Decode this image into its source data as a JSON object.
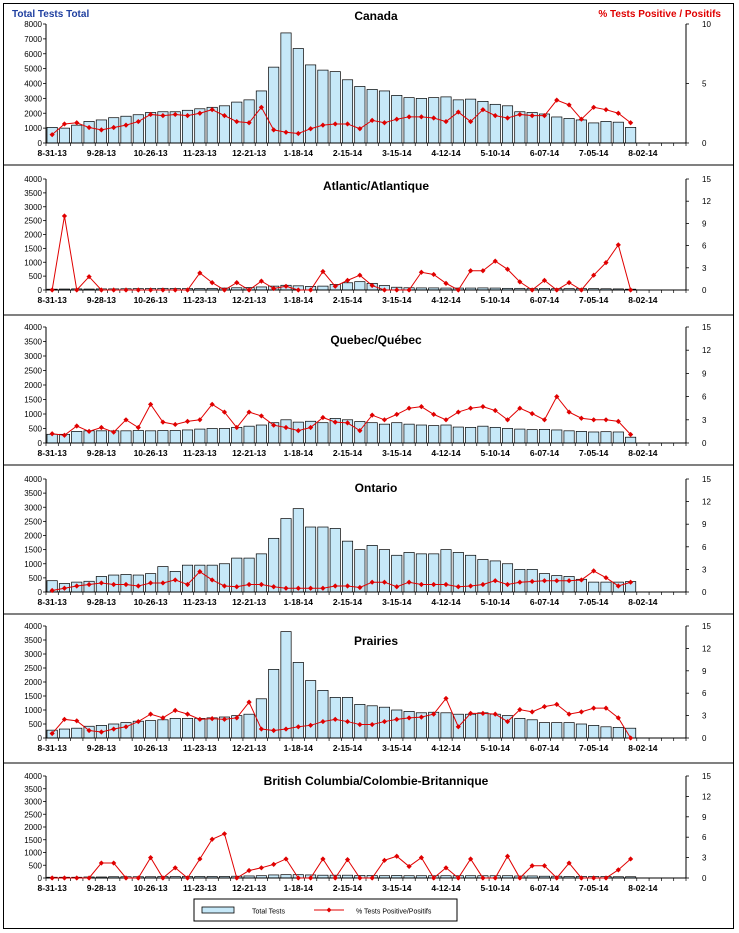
{
  "legend": {
    "bars_label": "Total Tests",
    "line_label": "% Tests Positive/Positifs"
  },
  "corner_labels": {
    "left": "Total Tests Total",
    "right": "% Tests Positive / Positifs"
  },
  "colors": {
    "bar_fill": "#c6e8f8",
    "bar_stroke": "#000000",
    "line": "#e00000",
    "left_label": "#1f3fa0",
    "right_label": "#e00000"
  },
  "x_tick_labels": [
    "8-31-13",
    "9-28-13",
    "10-26-13",
    "11-23-13",
    "12-21-13",
    "1-18-14",
    "2-15-14",
    "3-15-14",
    "4-12-14",
    "5-10-14",
    "6-07-14",
    "7-05-14",
    "8-02-14"
  ],
  "chart_data": [
    {
      "type": "bar",
      "title": "Canada",
      "ylim": [
        0,
        8000
      ],
      "yticks": [
        0,
        1000,
        2000,
        3000,
        4000,
        5000,
        6000,
        7000,
        8000
      ],
      "y2lim": [
        0,
        10
      ],
      "y2ticks": [
        0,
        5,
        10
      ],
      "series": [
        {
          "name": "Total Tests",
          "type": "bar",
          "values": [
            1050,
            1000,
            1200,
            1450,
            1550,
            1700,
            1800,
            1900,
            2050,
            2100,
            2100,
            2200,
            2300,
            2400,
            2500,
            2750,
            2900,
            3500,
            5100,
            7400,
            6350,
            5250,
            4900,
            4800,
            4250,
            3800,
            3600,
            3500,
            3200,
            3050,
            3000,
            3050,
            3100,
            2900,
            2950,
            2800,
            2600,
            2500,
            2100,
            2050,
            1950,
            1750,
            1650,
            1550,
            1350,
            1450,
            1400,
            1050,
            0,
            0,
            0,
            0
          ]
        },
        {
          "name": "% Tests Positive/Positifs",
          "type": "line",
          "values": [
            0.7,
            1.6,
            1.7,
            1.3,
            1.1,
            1.3,
            1.5,
            1.8,
            2.4,
            2.3,
            2.4,
            2.3,
            2.5,
            2.8,
            2.3,
            1.8,
            1.7,
            3.0,
            1.1,
            0.9,
            0.8,
            1.2,
            1.5,
            1.6,
            1.6,
            1.2,
            1.9,
            1.7,
            2.0,
            2.2,
            2.2,
            2.1,
            1.8,
            2.6,
            1.8,
            2.8,
            2.3,
            2.1,
            2.4,
            2.3,
            2.3,
            3.6,
            3.2,
            2.0,
            3.0,
            2.8,
            2.5,
            1.7
          ]
        }
      ]
    },
    {
      "type": "bar",
      "title": "Atlantic/Atlantique",
      "ylim": [
        0,
        4000
      ],
      "yticks": [
        0,
        500,
        1000,
        1500,
        2000,
        2500,
        3000,
        3500,
        4000
      ],
      "y2lim": [
        0,
        15
      ],
      "y2ticks": [
        0,
        3,
        6,
        9,
        12,
        15
      ],
      "series": [
        {
          "name": "Total Tests",
          "type": "bar",
          "values": [
            30,
            35,
            40,
            35,
            40,
            40,
            45,
            50,
            55,
            60,
            55,
            50,
            55,
            60,
            70,
            80,
            90,
            110,
            140,
            170,
            150,
            130,
            140,
            200,
            260,
            300,
            240,
            160,
            100,
            80,
            75,
            75,
            70,
            70,
            70,
            75,
            70,
            60,
            60,
            55,
            55,
            50,
            50,
            50,
            50,
            45,
            40,
            30,
            0,
            0,
            0,
            0
          ]
        },
        {
          "name": "% Tests Positive/Positifs",
          "type": "line",
          "values": [
            0,
            10,
            0,
            1.8,
            0,
            0,
            0,
            0,
            0,
            0,
            0,
            0,
            2.3,
            1,
            0,
            1,
            0,
            1.2,
            0.2,
            0.5,
            0,
            0,
            2.5,
            0.5,
            1.3,
            2,
            0.6,
            0,
            0,
            0,
            2.4,
            2.1,
            0.9,
            0,
            2.6,
            2.6,
            3.9,
            2.8,
            1.1,
            0,
            1.3,
            0,
            1,
            0,
            2,
            3.7,
            6.1,
            0
          ]
        }
      ]
    },
    {
      "type": "bar",
      "title": "Quebec/Québec",
      "ylim": [
        0,
        4000
      ],
      "yticks": [
        0,
        500,
        1000,
        1500,
        2000,
        2500,
        3000,
        3500,
        4000
      ],
      "y2lim": [
        0,
        15
      ],
      "y2ticks": [
        0,
        3,
        6,
        9,
        12,
        15
      ],
      "series": [
        {
          "name": "Total Tests",
          "type": "bar",
          "values": [
            300,
            300,
            400,
            420,
            420,
            420,
            420,
            430,
            420,
            430,
            430,
            450,
            480,
            500,
            500,
            540,
            580,
            620,
            700,
            800,
            720,
            750,
            700,
            850,
            800,
            740,
            700,
            650,
            700,
            650,
            620,
            600,
            620,
            550,
            540,
            580,
            540,
            500,
            480,
            460,
            470,
            450,
            420,
            400,
            380,
            390,
            380,
            200,
            0,
            0,
            0,
            0
          ]
        },
        {
          "name": "% Tests Positive/Positifs",
          "type": "line",
          "values": [
            1.2,
            1.0,
            2.2,
            1.5,
            2.0,
            1.4,
            3.0,
            2.0,
            5.0,
            2.7,
            2.4,
            2.8,
            3.0,
            5.0,
            4.0,
            2.0,
            4.0,
            3.5,
            2.3,
            2.0,
            1.6,
            2.0,
            3.3,
            2.7,
            2.6,
            1.6,
            3.6,
            3.0,
            3.7,
            4.5,
            4.7,
            3.7,
            3.0,
            4.0,
            4.5,
            4.7,
            4.2,
            3.0,
            4.5,
            3.8,
            3.0,
            6.0,
            4.0,
            3.2,
            3.0,
            3.0,
            2.8,
            1.1
          ]
        }
      ]
    },
    {
      "type": "bar",
      "title": "Ontario",
      "ylim": [
        0,
        4000
      ],
      "yticks": [
        0,
        500,
        1000,
        1500,
        2000,
        2500,
        3000,
        3500,
        4000
      ],
      "y2lim": [
        0,
        15
      ],
      "y2ticks": [
        0,
        3,
        6,
        9,
        12,
        15
      ],
      "series": [
        {
          "name": "Total Tests",
          "type": "bar",
          "values": [
            400,
            300,
            350,
            380,
            550,
            600,
            620,
            600,
            650,
            900,
            730,
            950,
            950,
            950,
            1000,
            1200,
            1200,
            1350,
            1900,
            2600,
            2950,
            2300,
            2300,
            2250,
            1800,
            1500,
            1650,
            1500,
            1300,
            1400,
            1350,
            1350,
            1500,
            1400,
            1300,
            1150,
            1100,
            1000,
            800,
            800,
            650,
            580,
            550,
            450,
            350,
            350,
            350,
            370,
            0,
            0,
            0,
            0
          ]
        },
        {
          "name": "% Tests Positive/Positifs",
          "type": "line",
          "values": [
            0.2,
            0.5,
            0.8,
            1.0,
            1.2,
            1.0,
            1.0,
            0.8,
            1.2,
            1.2,
            1.6,
            1.0,
            2.7,
            1.6,
            0.8,
            0.7,
            1.0,
            1.0,
            0.7,
            0.5,
            0.5,
            0.5,
            0.5,
            0.8,
            0.8,
            0.6,
            1.3,
            1.3,
            0.7,
            1.3,
            1.0,
            1.0,
            1.0,
            0.7,
            0.8,
            1.0,
            1.5,
            1.0,
            1.3,
            1.4,
            1.5,
            1.5,
            1.5,
            1.6,
            2.8,
            1.9,
            0.8,
            1.3
          ]
        }
      ]
    },
    {
      "type": "bar",
      "title": "Prairies",
      "ylim": [
        0,
        4000
      ],
      "yticks": [
        0,
        500,
        1000,
        1500,
        2000,
        2500,
        3000,
        3500,
        4000
      ],
      "y2lim": [
        0,
        15
      ],
      "y2ticks": [
        0,
        3,
        6,
        9,
        12,
        15
      ],
      "series": [
        {
          "name": "Total Tests",
          "type": "bar",
          "values": [
            280,
            320,
            350,
            420,
            450,
            500,
            550,
            600,
            620,
            650,
            700,
            700,
            700,
            720,
            750,
            800,
            850,
            1400,
            2450,
            3800,
            2700,
            2050,
            1700,
            1450,
            1450,
            1200,
            1150,
            1100,
            1000,
            950,
            900,
            920,
            900,
            850,
            850,
            900,
            850,
            800,
            700,
            650,
            550,
            550,
            550,
            500,
            450,
            400,
            380,
            350,
            0,
            0,
            0,
            0
          ]
        },
        {
          "name": "% Tests Positive/Positifs",
          "type": "line",
          "values": [
            0.6,
            2.5,
            2.3,
            1.0,
            0.8,
            1.2,
            1.5,
            2.2,
            3.2,
            2.7,
            3.7,
            3.2,
            2.5,
            2.6,
            2.5,
            2.7,
            4.8,
            1.2,
            1.0,
            1.2,
            1.5,
            1.7,
            2.2,
            2.5,
            2.2,
            1.8,
            1.8,
            2.2,
            2.5,
            2.7,
            2.8,
            3.2,
            5.3,
            1.5,
            3.3,
            3.3,
            3.2,
            2.2,
            3.8,
            3.5,
            4.2,
            4.5,
            3.2,
            3.5,
            4.0,
            4.0,
            2.7,
            0
          ]
        }
      ]
    },
    {
      "type": "bar",
      "title": "British Columbia/Colombie-Britannique",
      "ylim": [
        0,
        4000
      ],
      "yticks": [
        0,
        500,
        1000,
        1500,
        2000,
        2500,
        3000,
        3500,
        4000
      ],
      "y2lim": [
        0,
        15
      ],
      "y2ticks": [
        0,
        3,
        6,
        9,
        12,
        15
      ],
      "series": [
        {
          "name": "Total Tests",
          "type": "bar",
          "values": [
            30,
            30,
            30,
            40,
            40,
            50,
            50,
            50,
            50,
            60,
            60,
            60,
            60,
            60,
            60,
            70,
            80,
            90,
            120,
            130,
            130,
            120,
            110,
            110,
            110,
            100,
            100,
            90,
            100,
            90,
            90,
            90,
            90,
            90,
            90,
            90,
            90,
            90,
            80,
            80,
            70,
            70,
            60,
            60,
            60,
            60,
            50,
            50,
            0,
            0,
            0,
            0
          ]
        },
        {
          "name": "% Tests Positive/Positifs",
          "type": "line",
          "values": [
            0,
            0,
            0,
            0,
            2.2,
            2.2,
            0,
            0,
            3.0,
            0,
            1.5,
            0,
            2.8,
            5.7,
            6.5,
            0,
            1.1,
            1.5,
            2.0,
            2.8,
            0,
            0,
            2.8,
            0,
            2.7,
            0,
            0,
            2.6,
            3.2,
            1.7,
            3.0,
            0,
            1.5,
            0,
            2.8,
            0,
            0,
            3.2,
            0,
            1.8,
            1.8,
            0,
            2.2,
            0,
            0,
            0,
            1.2,
            2.8
          ]
        }
      ]
    }
  ]
}
